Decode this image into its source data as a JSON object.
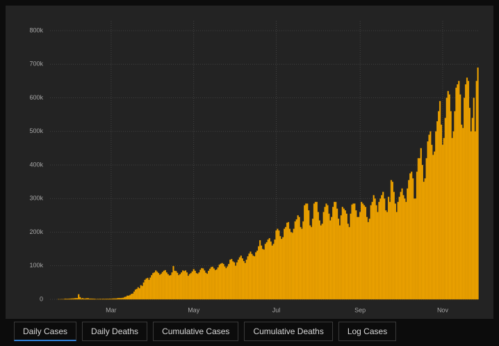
{
  "chart_data": {
    "type": "bar",
    "color": "#f2a600",
    "edge_color": "#b87c00",
    "grid": true,
    "categories": [
      null,
      null,
      null,
      null,
      null,
      null,
      null,
      null,
      null,
      null,
      null,
      null,
      null,
      null,
      null,
      null,
      null,
      null,
      null,
      null,
      null,
      null,
      null,
      null,
      null,
      null,
      null,
      null,
      null,
      null,
      null,
      null,
      null,
      null,
      null,
      null,
      null,
      null,
      null,
      "Mar",
      null,
      null,
      null,
      null,
      null,
      null,
      null,
      null,
      null,
      null,
      null,
      null,
      null,
      null,
      null,
      null,
      null,
      null,
      null,
      null,
      null,
      null,
      null,
      null,
      null,
      null,
      null,
      null,
      null,
      null,
      null,
      null,
      null,
      null,
      null,
      null,
      null,
      null,
      null,
      null,
      null,
      null,
      null,
      null,
      null,
      null,
      null,
      null,
      null,
      null,
      null,
      null,
      null,
      null,
      null,
      null,
      null,
      null,
      null,
      null,
      "May",
      null,
      null,
      null,
      null,
      null,
      null,
      null,
      null,
      null,
      null,
      null,
      null,
      null,
      null,
      null,
      null,
      null,
      null,
      null,
      null,
      null,
      null,
      null,
      null,
      null,
      null,
      null,
      null,
      null,
      null,
      null,
      null,
      null,
      null,
      null,
      null,
      null,
      null,
      null,
      null,
      null,
      null,
      null,
      null,
      null,
      null,
      null,
      null,
      null,
      null,
      null,
      null,
      null,
      null,
      null,
      null,
      null,
      null,
      null,
      null,
      "Jul",
      null,
      null,
      null,
      null,
      null,
      null,
      null,
      null,
      null,
      null,
      null,
      null,
      null,
      null,
      null,
      null,
      null,
      null,
      null,
      null,
      null,
      null,
      null,
      null,
      null,
      null,
      null,
      null,
      null,
      null,
      null,
      null,
      null,
      null,
      null,
      null,
      null,
      null,
      null,
      null,
      null,
      null,
      null,
      null,
      null,
      null,
      null,
      null,
      null,
      null,
      null,
      null,
      null,
      null,
      null,
      null,
      null,
      null,
      null,
      null,
      null,
      "Sep",
      null,
      null,
      null,
      null,
      null,
      null,
      null,
      null,
      null,
      null,
      null,
      null,
      null,
      null,
      null,
      null,
      null,
      null,
      null,
      null,
      null,
      null,
      null,
      null,
      null,
      null,
      null,
      null,
      null,
      null,
      null,
      null,
      null,
      null,
      null,
      null,
      null,
      null,
      null,
      null,
      null,
      null,
      null,
      null,
      null,
      null,
      null,
      null,
      null,
      null,
      null,
      null,
      null,
      null,
      null,
      null,
      null,
      null,
      null,
      null,
      "Nov",
      null,
      null,
      null,
      null,
      null,
      null,
      null,
      null,
      null,
      null,
      null,
      null,
      null,
      null,
      null,
      null,
      null,
      null,
      null,
      null,
      null,
      null,
      null,
      null,
      null,
      null
    ],
    "values": [
      500,
      100,
      600,
      500,
      700,
      2000,
      1700,
      1700,
      2000,
      2100,
      2600,
      2800,
      3200,
      3900,
      3700,
      15000,
      6500,
      2700,
      3700,
      2100,
      2600,
      3200,
      3400,
      2000,
      2100,
      2000,
      1900,
      1700,
      600,
      1200,
      1000,
      1600,
      1000,
      1800,
      1200,
      1500,
      1800,
      1500,
      2000,
      1900,
      2200,
      2500,
      2700,
      2800,
      3900,
      4000,
      3800,
      4200,
      4700,
      7000,
      8000,
      11000,
      10900,
      13000,
      16000,
      17000,
      23000,
      29000,
      31000,
      36000,
      33000,
      42000,
      40000,
      50000,
      58000,
      62000,
      64000,
      58000,
      65000,
      72000,
      78000,
      80000,
      86000,
      82000,
      78000,
      73000,
      76000,
      81000,
      85000,
      87000,
      80000,
      75000,
      71000,
      72000,
      80000,
      99000,
      85000,
      84000,
      79000,
      72000,
      75000,
      80000,
      86000,
      84000,
      86000,
      80000,
      70000,
      75000,
      78000,
      83000,
      90000,
      85000,
      78000,
      76000,
      80000,
      88000,
      93000,
      92000,
      86000,
      79000,
      76000,
      85000,
      91000,
      96000,
      97000,
      92000,
      87000,
      89000,
      95000,
      103000,
      106000,
      108000,
      105000,
      98000,
      93000,
      98000,
      105000,
      118000,
      120000,
      113000,
      110000,
      100000,
      110000,
      118000,
      125000,
      130000,
      122000,
      114000,
      108000,
      118000,
      128000,
      136000,
      142000,
      135000,
      130000,
      128000,
      140000,
      145000,
      158000,
      176000,
      160000,
      150000,
      148000,
      165000,
      170000,
      178000,
      182000,
      172000,
      160000,
      165000,
      178000,
      205000,
      210000,
      205000,
      188000,
      180000,
      185000,
      210000,
      215000,
      228000,
      230000,
      210000,
      200000,
      198000,
      210000,
      232000,
      238000,
      250000,
      245000,
      215000,
      210000,
      232000,
      280000,
      285000,
      285000,
      265000,
      220000,
      215000,
      240000,
      285000,
      290000,
      290000,
      260000,
      235000,
      220000,
      225000,
      260000,
      275000,
      285000,
      280000,
      255000,
      235000,
      245000,
      275000,
      290000,
      290000,
      270000,
      240000,
      220000,
      250000,
      275000,
      270000,
      265000,
      255000,
      225000,
      215000,
      255000,
      282000,
      285000,
      285000,
      265000,
      245000,
      245000,
      260000,
      290000,
      285000,
      280000,
      275000,
      245000,
      230000,
      240000,
      280000,
      290000,
      310000,
      300000,
      280000,
      260000,
      290000,
      300000,
      310000,
      320000,
      300000,
      265000,
      260000,
      305000,
      290000,
      355000,
      350000,
      320000,
      285000,
      260000,
      290000,
      305000,
      320000,
      330000,
      310000,
      300000,
      290000,
      330000,
      355000,
      375000,
      380000,
      360000,
      300000,
      300000,
      380000,
      420000,
      420000,
      450000,
      400000,
      350000,
      360000,
      420000,
      470000,
      490000,
      500000,
      460000,
      430000,
      440000,
      500000,
      530000,
      560000,
      590000,
      520000,
      460000,
      480000,
      540000,
      600000,
      620000,
      610000,
      560000,
      480000,
      500000,
      560000,
      630000,
      640000,
      650000,
      610000,
      520000,
      510000,
      600000,
      640000,
      660000,
      650000,
      570000,
      500000,
      540000,
      600000,
      500000,
      650000,
      690000
    ],
    "ylim": [
      0,
      800000
    ],
    "yticks": [
      0,
      {
        "value": 100000,
        "label": "100k"
      },
      {
        "value": 200000,
        "label": "200k"
      },
      {
        "value": 300000,
        "label": "300k"
      },
      {
        "value": 400000,
        "label": "400k"
      },
      {
        "value": 500000,
        "label": "500k"
      },
      {
        "value": 600000,
        "label": "600k"
      },
      {
        "value": 700000,
        "label": "700k"
      },
      {
        "value": 800000,
        "label": "800k"
      }
    ]
  },
  "tabs": [
    "Daily Cases",
    "Daily Deaths",
    "Cumulative Cases",
    "Cumulative Deaths",
    "Log Cases"
  ]
}
